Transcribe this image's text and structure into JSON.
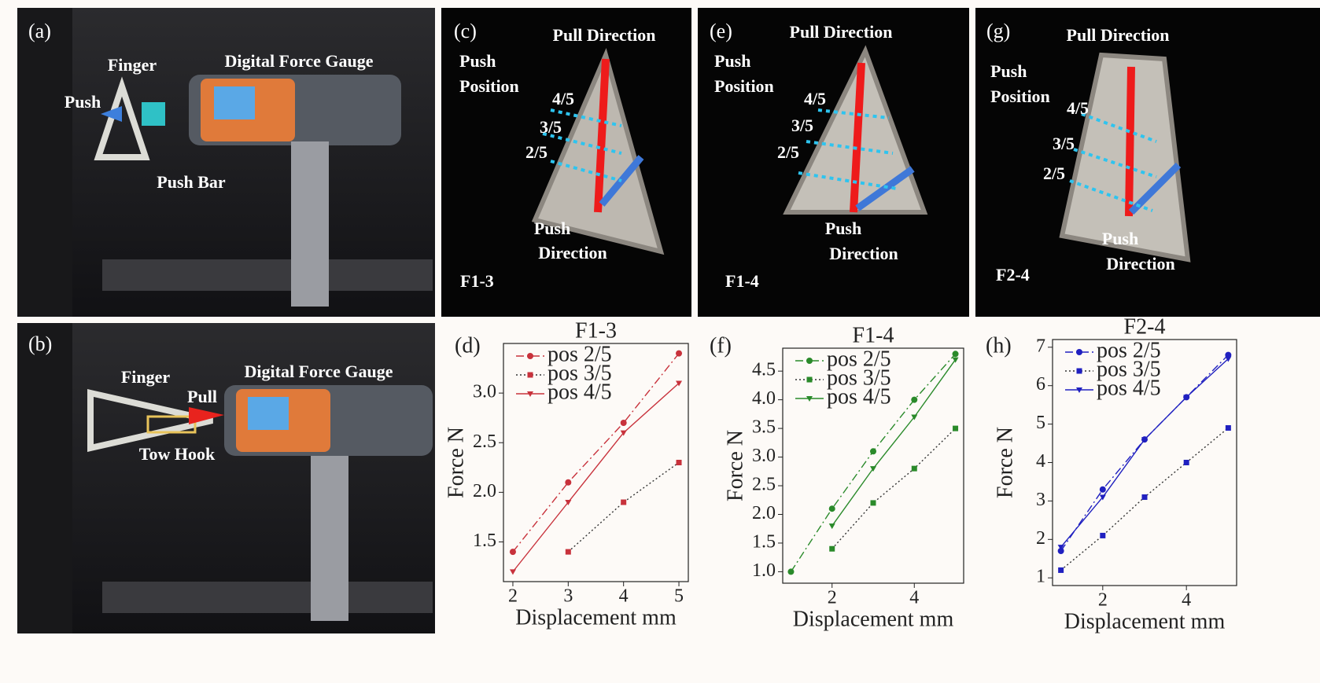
{
  "photos": [
    {
      "panel": "(a)",
      "labels": [
        "Finger",
        "Digital Force Gauge",
        "Push",
        "Push Bar"
      ]
    },
    {
      "panel": "(b)",
      "labels": [
        "Finger",
        "Digital Force Gauge",
        "Pull",
        "Tow Hook"
      ]
    },
    {
      "panel": "(c)",
      "labels": [
        "Pull Direction",
        "Push",
        "Position",
        "4/5",
        "3/5",
        "2/5",
        "Push",
        "Direction",
        "F1-3"
      ]
    },
    {
      "panel": "(e)",
      "labels": [
        "Pull Direction",
        "Push",
        "Position",
        "4/5",
        "3/5",
        "2/5",
        "Push",
        "Direction",
        "F1-4"
      ]
    },
    {
      "panel": "(g)",
      "labels": [
        "Pull Direction",
        "Push",
        "Position",
        "4/5",
        "3/5",
        "2/5",
        "Push",
        "Direction",
        "F2-4"
      ]
    }
  ],
  "chart_data": [
    {
      "type": "line",
      "panel": "(d)",
      "title": "F1-3",
      "xlabel": "Displacement mm",
      "ylabel": "Force N",
      "x": [
        2,
        3,
        4,
        5
      ],
      "xlim": [
        1.83,
        5.17
      ],
      "xticks": [
        2,
        3,
        4,
        5
      ],
      "ylim": [
        1.1,
        3.5
      ],
      "yticks": [
        1.5,
        {
          "value": 2,
          "label": "2.0"
        },
        2.5,
        {
          "value": 3,
          "label": "3.0"
        }
      ],
      "legend": "upper left",
      "series": [
        {
          "name": "pos 2/5",
          "color": "#c8323c",
          "linestyle": "dashdot",
          "marker": "circle",
          "values": [
            1.4,
            2.1,
            2.7,
            3.4
          ]
        },
        {
          "name": "pos 3/5",
          "color": "#c8323c",
          "linestyle": "dotted",
          "marker": "square",
          "values": [
            null,
            1.4,
            1.9,
            2.3
          ]
        },
        {
          "name": "pos 4/5",
          "color": "#c8323c",
          "linestyle": "solid",
          "marker": "triangle",
          "values": [
            1.2,
            1.9,
            2.6,
            3.1
          ]
        }
      ]
    },
    {
      "type": "line",
      "panel": "(f)",
      "title": "F1-4",
      "xlabel": "Displacement mm",
      "ylabel": "Force N",
      "x": [
        1,
        2,
        3,
        4,
        5
      ],
      "xlim": [
        0.8,
        5.2
      ],
      "xticks": [
        2,
        4
      ],
      "ylim": [
        0.8,
        4.9
      ],
      "yticks": [
        {
          "value": 1,
          "label": "1.0"
        },
        1.5,
        {
          "value": 2,
          "label": "2.0"
        },
        2.5,
        {
          "value": 3,
          "label": "3.0"
        },
        3.5,
        {
          "value": 4,
          "label": "4.0"
        },
        4.5
      ],
      "legend": "upper left",
      "series": [
        {
          "name": "pos 2/5",
          "color": "#2a8a2a",
          "linestyle": "dashdot",
          "marker": "circle",
          "values": [
            1.0,
            2.1,
            3.1,
            4.0,
            4.8
          ]
        },
        {
          "name": "pos 3/5",
          "color": "#2a8a2a",
          "linestyle": "dotted",
          "marker": "square",
          "values": [
            null,
            1.4,
            2.2,
            2.8,
            3.5
          ]
        },
        {
          "name": "pos 4/5",
          "color": "#2a8a2a",
          "linestyle": "solid",
          "marker": "triangle",
          "values": [
            null,
            1.8,
            2.8,
            3.7,
            4.7
          ]
        }
      ]
    },
    {
      "type": "line",
      "panel": "(h)",
      "title": "F2-4",
      "xlabel": "Displacement mm",
      "ylabel": "Force N",
      "x": [
        1,
        2,
        3,
        4,
        5
      ],
      "xlim": [
        0.8,
        5.2
      ],
      "xticks": [
        2,
        4
      ],
      "ylim": [
        0.8,
        7.2
      ],
      "yticks": [
        1,
        2,
        3,
        4,
        5,
        6,
        7
      ],
      "legend": "upper left",
      "series": [
        {
          "name": "pos 2/5",
          "color": "#2020c0",
          "linestyle": "dashdot",
          "marker": "circle",
          "values": [
            1.7,
            3.3,
            4.6,
            5.7,
            6.8
          ]
        },
        {
          "name": "pos 3/5",
          "color": "#2020c0",
          "linestyle": "dotted",
          "marker": "square",
          "values": [
            1.2,
            2.1,
            3.1,
            4.0,
            4.9
          ]
        },
        {
          "name": "pos 4/5",
          "color": "#2020c0",
          "linestyle": "solid",
          "marker": "triangle",
          "values": [
            1.8,
            3.1,
            4.6,
            5.7,
            6.7
          ]
        }
      ]
    }
  ]
}
